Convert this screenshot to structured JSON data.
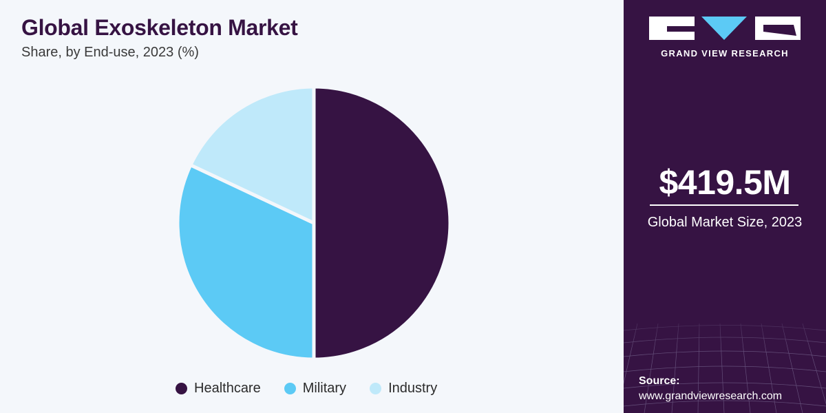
{
  "header": {
    "title": "Global Exoskeleton Market",
    "subtitle": "Share, by End-use, 2023 (%)"
  },
  "chart_data": {
    "type": "pie",
    "title": "Global Exoskeleton Market",
    "subtitle": "Share, by End-use, 2023 (%)",
    "categories": [
      "Healthcare",
      "Military",
      "Industry"
    ],
    "values": [
      50,
      32,
      18
    ],
    "colors": [
      "#361343",
      "#5ccaf5",
      "#bfe9fa"
    ],
    "legend_position": "bottom"
  },
  "legend": {
    "items": [
      {
        "label": "Healthcare",
        "color": "#361343"
      },
      {
        "label": "Military",
        "color": "#5ccaf5"
      },
      {
        "label": "Industry",
        "color": "#bfe9fa"
      }
    ]
  },
  "sidebar": {
    "brand": "GRAND VIEW RESEARCH",
    "market_value": "$419.5M",
    "market_label": "Global Market Size, 2023",
    "source_title": "Source:",
    "source_url": "www.grandviewresearch.com",
    "background_color": "#361343"
  }
}
